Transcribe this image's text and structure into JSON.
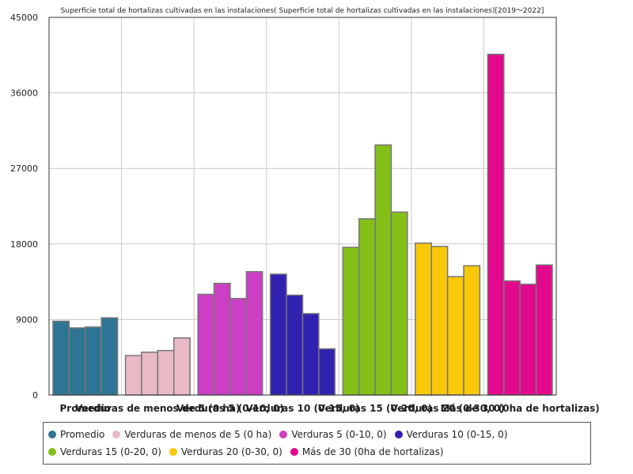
{
  "chart_data": {
    "type": "bar",
    "title": "Superficie total de hortalizas cultivadas en las instalaciones( Superficie total de hortalizas cultivadas en las instalaciones)[2019～2022]",
    "xlabel": "",
    "ylabel": "",
    "ylim": [
      0,
      45000
    ],
    "yticks": [
      0,
      9000,
      18000,
      27000,
      36000,
      45000
    ],
    "grid": true,
    "legend_position": "bottom",
    "categories": [
      "Promedio",
      "Verduras de menos de 5 (0 ha)",
      "Verduras 5 (0-10, 0)",
      "Verduras 10 (0-15, 0)",
      "Verduras 15 (0-20, 0)",
      "Verduras 20 (0-30, 0)",
      "Más de 30 (0ha de hortalizas)"
    ],
    "colors": [
      "#2e7595",
      "#e9b9c5",
      "#cc3fc4",
      "#3121b0",
      "#85c019",
      "#f9c809",
      "#e2098e"
    ],
    "groups": [
      {
        "name": "Promedio",
        "values": [
          8800,
          8000,
          8100,
          9200
        ]
      },
      {
        "name": "Verduras de menos de 5 (0 ha)",
        "values": [
          4700,
          5100,
          5300,
          6800
        ]
      },
      {
        "name": "Verduras 5 (0-10, 0)",
        "values": [
          12000,
          13300,
          11500,
          14700
        ]
      },
      {
        "name": "Verduras 10 (0-15, 0)",
        "values": [
          14400,
          11900,
          9700,
          5500
        ]
      },
      {
        "name": "Verduras 15 (0-20, 0)",
        "values": [
          17600,
          21000,
          29800,
          21800
        ]
      },
      {
        "name": "Verduras 20 (0-30, 0)",
        "values": [
          18100,
          17700,
          14100,
          15400
        ]
      },
      {
        "name": "Más de 30 (0ha de hortalizas)",
        "values": [
          40600,
          13600,
          13200,
          15500
        ]
      }
    ]
  }
}
